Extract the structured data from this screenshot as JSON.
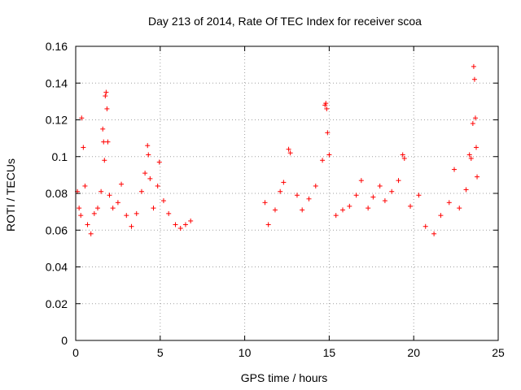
{
  "chart_data": {
    "type": "scatter",
    "title": "Day 213 of 2014, Rate Of TEC Index for receiver scoa",
    "xlabel": "GPS time / hours",
    "ylabel": "ROTI / TECUs",
    "xlim": [
      0,
      25
    ],
    "ylim": [
      0,
      0.16
    ],
    "x_ticks": [
      "0",
      "5",
      "10",
      "15",
      "20",
      "25"
    ],
    "y_ticks": [
      "0",
      "0.02",
      "0.04",
      "0.06",
      "0.08",
      "0.1",
      "0.12",
      "0.14",
      "0.16"
    ],
    "grid": true,
    "marker": "plus",
    "colors": {
      "series": "#ff0000",
      "grid": "#a0a0a0",
      "axis": "#000000"
    },
    "series": [
      {
        "points": [
          [
            0.1,
            0.081
          ],
          [
            0.2,
            0.072
          ],
          [
            0.3,
            0.068
          ],
          [
            0.35,
            0.121
          ],
          [
            0.45,
            0.105
          ],
          [
            0.55,
            0.084
          ],
          [
            0.7,
            0.063
          ],
          [
            0.9,
            0.058
          ],
          [
            1.1,
            0.069
          ],
          [
            1.3,
            0.072
          ],
          [
            1.5,
            0.081
          ],
          [
            1.6,
            0.115
          ],
          [
            1.65,
            0.108
          ],
          [
            1.7,
            0.098
          ],
          [
            1.75,
            0.133
          ],
          [
            1.8,
            0.135
          ],
          [
            1.85,
            0.126
          ],
          [
            1.9,
            0.108
          ],
          [
            2.0,
            0.079
          ],
          [
            2.2,
            0.072
          ],
          [
            2.5,
            0.075
          ],
          [
            2.7,
            0.085
          ],
          [
            3.0,
            0.068
          ],
          [
            3.3,
            0.062
          ],
          [
            3.6,
            0.069
          ],
          [
            3.9,
            0.081
          ],
          [
            4.1,
            0.091
          ],
          [
            4.25,
            0.106
          ],
          [
            4.3,
            0.101
          ],
          [
            4.4,
            0.088
          ],
          [
            4.6,
            0.072
          ],
          [
            4.85,
            0.084
          ],
          [
            4.95,
            0.097
          ],
          [
            5.2,
            0.076
          ],
          [
            5.5,
            0.069
          ],
          [
            5.9,
            0.063
          ],
          [
            6.2,
            0.061
          ],
          [
            6.5,
            0.063
          ],
          [
            6.8,
            0.065
          ],
          [
            11.2,
            0.075
          ],
          [
            11.4,
            0.063
          ],
          [
            11.8,
            0.071
          ],
          [
            12.1,
            0.081
          ],
          [
            12.3,
            0.086
          ],
          [
            12.6,
            0.104
          ],
          [
            12.7,
            0.102
          ],
          [
            13.1,
            0.079
          ],
          [
            13.4,
            0.071
          ],
          [
            13.8,
            0.077
          ],
          [
            14.2,
            0.084
          ],
          [
            14.6,
            0.098
          ],
          [
            14.75,
            0.128
          ],
          [
            14.8,
            0.129
          ],
          [
            14.85,
            0.126
          ],
          [
            14.9,
            0.113
          ],
          [
            15.0,
            0.101
          ],
          [
            15.4,
            0.068
          ],
          [
            15.8,
            0.071
          ],
          [
            16.2,
            0.073
          ],
          [
            16.6,
            0.079
          ],
          [
            16.9,
            0.087
          ],
          [
            17.3,
            0.072
          ],
          [
            17.6,
            0.078
          ],
          [
            18.0,
            0.084
          ],
          [
            18.3,
            0.076
          ],
          [
            18.7,
            0.081
          ],
          [
            19.1,
            0.087
          ],
          [
            19.35,
            0.101
          ],
          [
            19.45,
            0.099
          ],
          [
            19.8,
            0.073
          ],
          [
            20.3,
            0.079
          ],
          [
            20.7,
            0.062
          ],
          [
            21.2,
            0.058
          ],
          [
            21.6,
            0.068
          ],
          [
            22.1,
            0.075
          ],
          [
            22.4,
            0.093
          ],
          [
            22.7,
            0.072
          ],
          [
            23.1,
            0.082
          ],
          [
            23.3,
            0.101
          ],
          [
            23.4,
            0.099
          ],
          [
            23.5,
            0.118
          ],
          [
            23.55,
            0.149
          ],
          [
            23.6,
            0.142
          ],
          [
            23.65,
            0.121
          ],
          [
            23.7,
            0.105
          ],
          [
            23.75,
            0.089
          ]
        ]
      }
    ]
  }
}
